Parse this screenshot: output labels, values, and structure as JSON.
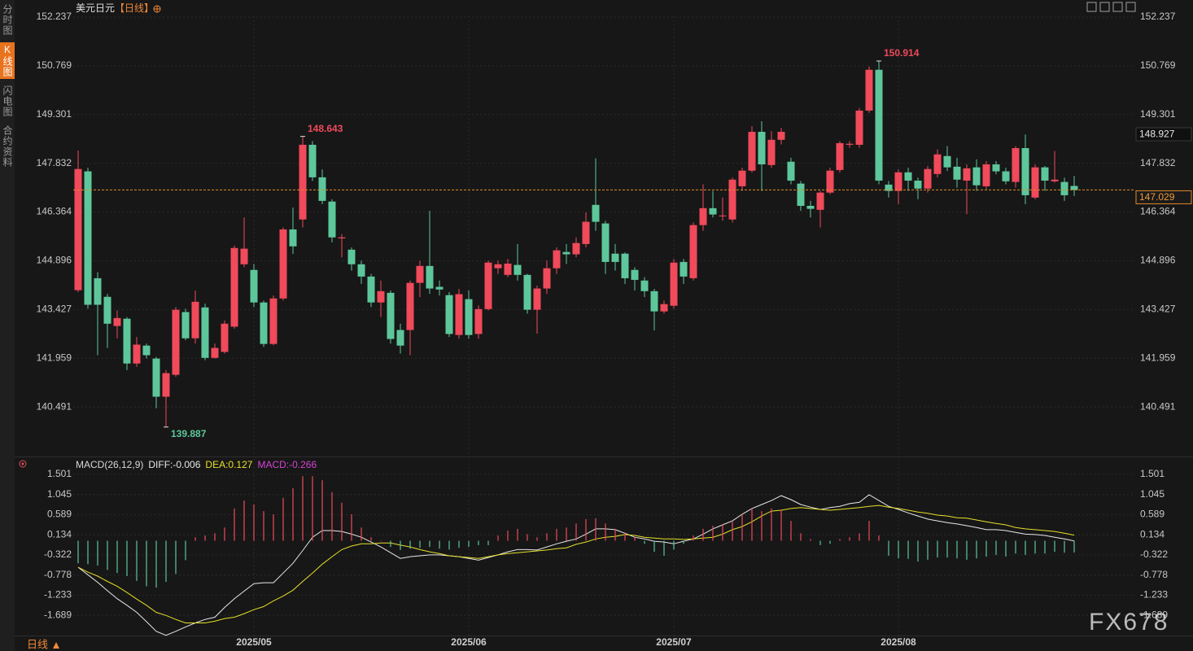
{
  "sidebar_tabs": [
    "分时图",
    "K线图",
    "闪电图",
    "合约资料"
  ],
  "active_tab": 1,
  "period_button": "日线",
  "watermark": "FX678",
  "chart_data": [
    {
      "type": "candlestick",
      "title": "美元日元",
      "period": "【日线】",
      "up_color": "#f04a5b",
      "down_color": "#5dc79b",
      "grid": true,
      "ylim": [
        139.023,
        152.237
      ],
      "yticks": [
        152.237,
        150.769,
        149.301,
        147.832,
        146.364,
        144.896,
        143.427,
        141.959,
        140.491
      ],
      "marker_price": 148.927,
      "categories": [
        null,
        null,
        null,
        null,
        null,
        null,
        null,
        null,
        null,
        null,
        null,
        null,
        null,
        null,
        null,
        null,
        null,
        null,
        "2025/05",
        null,
        null,
        null,
        null,
        null,
        null,
        null,
        null,
        null,
        null,
        null,
        null,
        null,
        null,
        null,
        null,
        null,
        null,
        null,
        null,
        null,
        "2025/06",
        null,
        null,
        null,
        null,
        null,
        null,
        null,
        null,
        null,
        null,
        null,
        null,
        null,
        null,
        null,
        null,
        null,
        null,
        null,
        null,
        "2025/07",
        null,
        null,
        null,
        null,
        null,
        null,
        null,
        null,
        null,
        null,
        null,
        null,
        null,
        null,
        null,
        null,
        null,
        null,
        null,
        null,
        null,
        null,
        "2025/08",
        null,
        null,
        null,
        null,
        null,
        null,
        null,
        null,
        null,
        null,
        null,
        null,
        null,
        null,
        null,
        null,
        null,
        null
      ],
      "ohlc": [
        [
          144.01,
          148.22,
          143.95,
          147.66
        ],
        [
          147.59,
          147.7,
          143.45,
          143.57
        ],
        [
          144.37,
          144.55,
          142.05,
          143.57
        ],
        [
          143.81,
          143.9,
          142.27,
          143.0
        ],
        [
          142.93,
          143.4,
          142.56,
          143.17
        ],
        [
          143.15,
          143.2,
          141.6,
          141.8
        ],
        [
          141.8,
          142.6,
          141.7,
          142.37
        ],
        [
          142.34,
          142.4,
          141.95,
          142.05
        ],
        [
          141.95,
          142.0,
          140.45,
          140.8
        ],
        [
          140.8,
          141.6,
          139.887,
          141.51
        ],
        [
          141.46,
          143.5,
          141.4,
          143.42
        ],
        [
          143.35,
          143.45,
          142.5,
          142.56
        ],
        [
          142.56,
          144.0,
          142.4,
          143.66
        ],
        [
          143.49,
          143.6,
          141.9,
          141.97
        ],
        [
          141.97,
          142.4,
          141.95,
          142.27
        ],
        [
          142.15,
          143.1,
          142.1,
          143.0
        ],
        [
          142.91,
          145.35,
          142.85,
          145.28
        ],
        [
          144.79,
          146.2,
          144.7,
          145.26
        ],
        [
          144.62,
          144.8,
          143.5,
          143.64
        ],
        [
          143.64,
          143.7,
          142.3,
          142.39
        ],
        [
          142.39,
          143.85,
          142.35,
          143.76
        ],
        [
          143.76,
          145.9,
          143.7,
          145.84
        ],
        [
          145.84,
          146.5,
          145.1,
          145.33
        ],
        [
          146.14,
          148.643,
          145.9,
          148.39
        ],
        [
          148.39,
          148.5,
          147.3,
          147.41
        ],
        [
          147.41,
          147.65,
          146.6,
          146.7
        ],
        [
          146.68,
          146.75,
          145.45,
          145.6
        ],
        [
          145.57,
          145.7,
          145.0,
          145.6
        ],
        [
          145.23,
          145.3,
          144.6,
          144.79
        ],
        [
          144.79,
          144.9,
          144.2,
          144.42
        ],
        [
          144.42,
          144.5,
          143.5,
          143.64
        ],
        [
          143.64,
          144.3,
          143.2,
          143.98
        ],
        [
          143.93,
          144.0,
          142.4,
          142.54
        ],
        [
          142.81,
          143.0,
          142.1,
          142.34
        ],
        [
          142.81,
          144.3,
          142.05,
          144.23
        ],
        [
          144.23,
          144.9,
          143.8,
          144.74
        ],
        [
          144.74,
          146.4,
          143.9,
          144.06
        ],
        [
          144.11,
          144.3,
          143.85,
          144.03
        ],
        [
          143.86,
          143.95,
          142.6,
          142.69
        ],
        [
          142.66,
          144.05,
          142.55,
          143.89
        ],
        [
          143.74,
          144.0,
          142.55,
          142.66
        ],
        [
          142.69,
          143.55,
          142.55,
          143.44
        ],
        [
          143.44,
          144.9,
          143.4,
          144.84
        ],
        [
          144.67,
          144.9,
          144.5,
          144.79
        ],
        [
          144.47,
          144.95,
          144.4,
          144.81
        ],
        [
          144.77,
          145.4,
          144.3,
          144.47
        ],
        [
          144.47,
          144.5,
          143.3,
          143.42
        ],
        [
          143.42,
          144.15,
          142.7,
          144.06
        ],
        [
          144.06,
          144.9,
          143.9,
          144.67
        ],
        [
          144.67,
          145.3,
          144.5,
          145.21
        ],
        [
          145.16,
          145.4,
          144.8,
          145.09
        ],
        [
          145.09,
          145.6,
          145.0,
          145.43
        ],
        [
          145.4,
          146.35,
          145.3,
          146.07
        ],
        [
          146.58,
          147.98,
          145.8,
          146.07
        ],
        [
          146.02,
          146.1,
          144.5,
          144.86
        ],
        [
          145.11,
          145.4,
          144.6,
          144.86
        ],
        [
          145.11,
          145.15,
          144.2,
          144.37
        ],
        [
          144.62,
          144.7,
          144.0,
          144.32
        ],
        [
          144.3,
          144.4,
          143.8,
          143.98
        ],
        [
          143.98,
          144.05,
          142.8,
          143.37
        ],
        [
          143.37,
          143.7,
          143.3,
          143.59
        ],
        [
          143.54,
          144.95,
          143.45,
          144.84
        ],
        [
          144.86,
          144.95,
          144.2,
          144.42
        ],
        [
          144.37,
          146.05,
          144.3,
          145.97
        ],
        [
          145.97,
          147.2,
          145.8,
          146.48
        ],
        [
          146.48,
          147.0,
          146.2,
          146.29
        ],
        [
          146.24,
          146.8,
          146.1,
          146.26
        ],
        [
          146.14,
          147.4,
          146.05,
          147.34
        ],
        [
          147.14,
          147.7,
          147.0,
          147.61
        ],
        [
          147.61,
          148.95,
          147.55,
          148.78
        ],
        [
          148.78,
          149.1,
          147.0,
          147.8
        ],
        [
          147.78,
          148.8,
          147.7,
          148.54
        ],
        [
          148.54,
          148.9,
          148.4,
          148.78
        ],
        [
          147.88,
          148.0,
          147.2,
          147.31
        ],
        [
          147.22,
          147.3,
          146.4,
          146.55
        ],
        [
          146.55,
          146.7,
          146.2,
          146.46
        ],
        [
          146.43,
          147.0,
          145.9,
          146.95
        ],
        [
          146.95,
          147.7,
          146.9,
          147.61
        ],
        [
          147.63,
          148.5,
          147.55,
          148.44
        ],
        [
          148.39,
          148.5,
          148.3,
          148.42
        ],
        [
          148.39,
          149.5,
          148.3,
          149.42
        ],
        [
          149.42,
          150.75,
          149.35,
          150.65
        ],
        [
          150.65,
          150.914,
          147.2,
          147.31
        ],
        [
          147.19,
          147.3,
          146.8,
          147.0
        ],
        [
          147.0,
          147.65,
          146.6,
          147.56
        ],
        [
          147.56,
          147.7,
          147.0,
          147.31
        ],
        [
          147.31,
          147.4,
          146.75,
          147.07
        ],
        [
          147.07,
          147.75,
          146.95,
          147.66
        ],
        [
          147.51,
          148.25,
          147.4,
          148.1
        ],
        [
          148.05,
          148.35,
          147.6,
          147.71
        ],
        [
          147.73,
          148.0,
          147.1,
          147.34
        ],
        [
          147.31,
          147.8,
          146.3,
          147.68
        ],
        [
          147.71,
          147.95,
          147.0,
          147.17
        ],
        [
          147.14,
          147.9,
          147.05,
          147.8
        ],
        [
          147.8,
          147.9,
          147.5,
          147.59
        ],
        [
          147.59,
          147.7,
          147.2,
          147.29
        ],
        [
          147.27,
          148.35,
          147.1,
          148.29
        ],
        [
          148.29,
          148.7,
          146.6,
          146.87
        ],
        [
          146.8,
          147.8,
          146.75,
          147.71
        ],
        [
          147.71,
          147.75,
          147.0,
          147.31
        ],
        [
          147.29,
          148.2,
          147.25,
          147.34
        ],
        [
          147.27,
          147.4,
          146.7,
          146.87
        ],
        [
          147.15,
          147.45,
          146.85,
          147.029
        ]
      ]
    },
    {
      "type": "macd",
      "title": "MACD(26,12,9)",
      "grid": true,
      "ylim": [
        -2.145,
        1.501
      ],
      "yticks": [
        1.501,
        1.045,
        0.589,
        0.134,
        -0.322,
        -0.778,
        -1.233,
        -1.689
      ],
      "series": [
        {
          "label": "DIFF:-0.006",
          "color": "#e8e8e8",
          "style": "line",
          "values": [
            -0.6,
            -0.77,
            -0.94,
            -1.13,
            -1.31,
            -1.46,
            -1.62,
            -1.83,
            -2.05,
            -2.14,
            -2.05,
            -1.95,
            -1.86,
            -1.78,
            -1.73,
            -1.51,
            -1.31,
            -1.14,
            -0.97,
            -0.95,
            -0.95,
            -0.73,
            -0.51,
            -0.22,
            0.08,
            0.23,
            0.23,
            0.21,
            0.15,
            0.08,
            -0.03,
            -0.14,
            -0.27,
            -0.4,
            -0.36,
            -0.34,
            -0.32,
            -0.32,
            -0.34,
            -0.36,
            -0.4,
            -0.44,
            -0.38,
            -0.32,
            -0.25,
            -0.2,
            -0.2,
            -0.21,
            -0.14,
            -0.07,
            -0.01,
            0.04,
            0.15,
            0.27,
            0.27,
            0.25,
            0.17,
            0.08,
            0.04,
            -0.01,
            -0.03,
            -0.07,
            -0.01,
            0.04,
            0.15,
            0.27,
            0.36,
            0.45,
            0.6,
            0.73,
            0.82,
            0.91,
            1.02,
            0.93,
            0.82,
            0.76,
            0.71,
            0.75,
            0.78,
            0.84,
            0.87,
            1.04,
            0.91,
            0.78,
            0.71,
            0.63,
            0.56,
            0.49,
            0.45,
            0.41,
            0.38,
            0.34,
            0.3,
            0.25,
            0.25,
            0.23,
            0.19,
            0.15,
            0.14,
            0.12,
            0.08,
            0.04,
            -0.006
          ]
        },
        {
          "label": "DEA:0.127",
          "color": "#e6e02a",
          "style": "line",
          "values": [
            -0.6,
            -0.71,
            -0.8,
            -0.92,
            -1.03,
            -1.17,
            -1.32,
            -1.46,
            -1.62,
            -1.69,
            -1.78,
            -1.86,
            -1.86,
            -1.86,
            -1.82,
            -1.76,
            -1.73,
            -1.65,
            -1.56,
            -1.49,
            -1.36,
            -1.25,
            -1.12,
            -0.92,
            -0.73,
            -0.53,
            -0.36,
            -0.2,
            -0.12,
            -0.07,
            -0.07,
            -0.05,
            -0.05,
            -0.1,
            -0.14,
            -0.2,
            -0.25,
            -0.29,
            -0.34,
            -0.36,
            -0.38,
            -0.4,
            -0.36,
            -0.32,
            -0.29,
            -0.27,
            -0.25,
            -0.23,
            -0.21,
            -0.18,
            -0.16,
            -0.08,
            -0.03,
            0.04,
            0.08,
            0.1,
            0.14,
            0.12,
            0.08,
            0.06,
            0.04,
            0.04,
            0.03,
            0.04,
            0.06,
            0.08,
            0.15,
            0.25,
            0.32,
            0.43,
            0.56,
            0.67,
            0.69,
            0.73,
            0.75,
            0.73,
            0.71,
            0.69,
            0.71,
            0.73,
            0.75,
            0.78,
            0.8,
            0.76,
            0.73,
            0.69,
            0.65,
            0.62,
            0.58,
            0.56,
            0.52,
            0.51,
            0.47,
            0.43,
            0.39,
            0.36,
            0.3,
            0.27,
            0.25,
            0.23,
            0.21,
            0.17,
            0.127
          ]
        },
        {
          "label": "MACD:-0.266",
          "color": "#d444d4",
          "style": "histogram",
          "up_color": "#f04a5b",
          "down_color": "#5dc79b",
          "values": [
            -0.51,
            -0.53,
            -0.56,
            -0.66,
            -0.73,
            -0.8,
            -0.91,
            -1.03,
            -1.06,
            -0.93,
            -0.75,
            -0.44,
            0.08,
            0.12,
            0.17,
            0.3,
            0.73,
            0.91,
            0.82,
            0.67,
            0.6,
            0.97,
            1.19,
            1.46,
            1.46,
            1.37,
            1.1,
            0.86,
            0.6,
            0.3,
            0.08,
            0.01,
            -0.14,
            -0.21,
            -0.18,
            -0.16,
            -0.14,
            -0.18,
            -0.2,
            -0.16,
            -0.14,
            -0.1,
            -0.1,
            0.12,
            0.23,
            0.27,
            0.15,
            0.08,
            0.17,
            0.27,
            0.3,
            0.39,
            0.49,
            0.51,
            0.39,
            0.27,
            0.17,
            0.08,
            -0.07,
            -0.25,
            -0.34,
            -0.2,
            -0.07,
            0.12,
            0.27,
            0.34,
            0.38,
            0.45,
            0.6,
            0.73,
            0.67,
            0.73,
            0.69,
            0.45,
            0.17,
            0.04,
            -0.1,
            -0.07,
            0.04,
            0.08,
            0.17,
            0.45,
            0.12,
            -0.34,
            -0.4,
            -0.41,
            -0.47,
            -0.43,
            -0.38,
            -0.38,
            -0.4,
            -0.43,
            -0.4,
            -0.36,
            -0.32,
            -0.36,
            -0.29,
            -0.32,
            -0.29,
            -0.29,
            -0.25,
            -0.27,
            -0.266
          ]
        }
      ]
    }
  ]
}
